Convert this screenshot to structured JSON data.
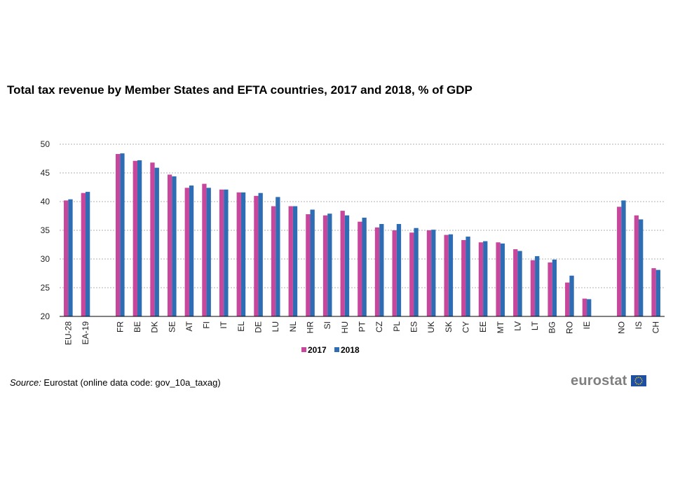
{
  "title": "Total tax revenue by Member States and EFTA countries, 2017 and 2018, % of GDP",
  "source": {
    "label": "Source:",
    "text": " Eurostat (online data code: gov_10a_taxag)"
  },
  "logo": {
    "text": "eurostat",
    "flag_icon": "eu-flag-icon"
  },
  "colors": {
    "s2017": "#c6479b",
    "s2018": "#2e6db4",
    "grid": "#b0b0b0"
  },
  "chart_data": {
    "type": "bar",
    "categories": [
      "EU-28",
      "EA-19",
      "",
      "FR",
      "BE",
      "DK",
      "SE",
      "AT",
      "FI",
      "IT",
      "EL",
      "DE",
      "LU",
      "NL",
      "HR",
      "SI",
      "HU",
      "PT",
      "CZ",
      "PL",
      "ES",
      "UK",
      "SK",
      "CY",
      "EE",
      "MT",
      "LV",
      "LT",
      "BG",
      "RO",
      "IE",
      "",
      "NO",
      "IS",
      "CH"
    ],
    "series": [
      {
        "name": "2017",
        "values": [
          40.2,
          41.5,
          null,
          48.3,
          47.1,
          46.8,
          44.7,
          42.4,
          43.1,
          42.1,
          41.6,
          41.0,
          39.2,
          39.2,
          37.8,
          37.6,
          38.4,
          36.5,
          35.5,
          35.0,
          34.6,
          35.0,
          34.2,
          33.3,
          32.9,
          32.9,
          31.7,
          29.8,
          29.4,
          25.9,
          23.1,
          null,
          39.1,
          37.6,
          28.4
        ]
      },
      {
        "name": "2018",
        "values": [
          40.4,
          41.7,
          null,
          48.4,
          47.2,
          45.9,
          44.4,
          42.8,
          42.4,
          42.1,
          41.6,
          41.5,
          40.8,
          39.2,
          38.6,
          37.9,
          37.6,
          37.2,
          36.1,
          36.1,
          35.4,
          35.1,
          34.3,
          33.9,
          33.1,
          32.7,
          31.4,
          30.5,
          29.9,
          27.1,
          23.0,
          null,
          40.2,
          36.9,
          28.1
        ]
      }
    ],
    "ylim": [
      20,
      50
    ],
    "yticks": [
      20,
      25,
      30,
      35,
      40,
      45,
      50
    ],
    "grid": true,
    "legend": "bottom-center",
    "xlabel": "",
    "ylabel": ""
  }
}
